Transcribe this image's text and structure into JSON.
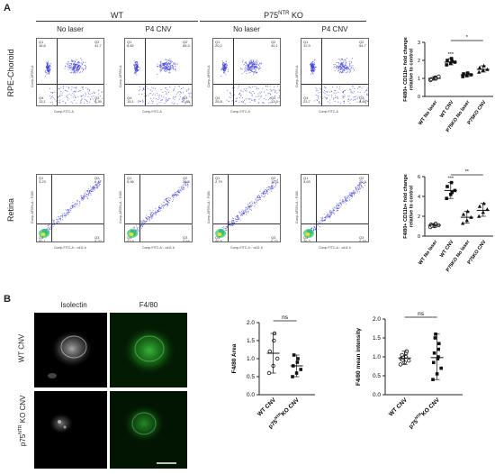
{
  "panelA": {
    "letter": "A",
    "group_wt": "WT",
    "group_ko": "P75NTR KO",
    "col_no_laser": "No laser",
    "col_p4cnv": "P4 CNV",
    "row_rpe": "RPE-Choroid",
    "row_retina": "Retina",
    "facs_rpe": [
      {
        "q1": "Q1",
        "q1v": "16,8",
        "q2": "Q2",
        "q2v": "41,7",
        "q3": "Q3",
        "q3v": "4,39",
        "q4": "Q4",
        "q4v": "13,1",
        "xlabel": "Comp-FITC-A",
        "ylabel": "Comp-AF594-A"
      },
      {
        "q1": "Q1",
        "q1v": "8,82",
        "q2": "Q2",
        "q2v": "68,3",
        "q3": "Q3",
        "q3v": "7,88",
        "q4": "Q4",
        "q4v": "15,1",
        "xlabel": "Comp-FITC-A",
        "ylabel": "Comp-AF594-A"
      },
      {
        "q1": "Q1",
        "q1v": "20,2",
        "q2": "Q2",
        "q2v": "40,1",
        "q3": "Q3",
        "q3v": "13,5",
        "q4": "Q4",
        "q4v": "25,8",
        "xlabel": "Comp-FITC-A",
        "ylabel": "Comp-AF594-A"
      },
      {
        "q1": "Q1",
        "q1v": "12,9",
        "q2": "Q2",
        "q2v": "54,7",
        "q3": "Q3",
        "q3v": "8,84",
        "q4": "Q4",
        "q4v": "23,7",
        "xlabel": "Comp-FITC-A",
        "ylabel": "Comp-AF594-A"
      }
    ],
    "facs_retina": [
      {
        "q1": "Q1",
        "q1v": "3,23",
        "q2": "Q2",
        "q2v": "6,47",
        "q3": "Q3",
        "q3v": "0,22",
        "q4": "Q4",
        "q4v": "90,1",
        "xlabel": "Comp-FITC-A :: cd11 b",
        "ylabel": "Comp-AF594-A :: F480"
      },
      {
        "q1": "Q1",
        "q1v": "5,96",
        "q2": "Q2",
        "q2v": "39,5",
        "q3": "Q3",
        "q3v": "0,64",
        "q4": "Q4",
        "q4v": "83,9",
        "xlabel": "Comp-FITC-A :: cd11 b",
        "ylabel": "Comp-AF594-A :: F480"
      },
      {
        "q1": "Q1",
        "q1v": "2,79",
        "q2": "Q2",
        "q2v": "10,3",
        "q3": "Q3",
        "q3v": "0,22",
        "q4": "Q4",
        "q4v": "86,9",
        "xlabel": "Comp-FITC-A :: cd11 b",
        "ylabel": "Comp-AF594-A :: F480"
      },
      {
        "q1": "Q1",
        "q1v": "3,63",
        "q2": "Q2",
        "q2v": "20,3",
        "q3": "Q3",
        "q3v": "0,45",
        "q4": "Q4",
        "q4v": "76,3",
        "xlabel": "Comp-FITC-A :: cd11 b",
        "ylabel": "Comp-AF594-A :: F480"
      }
    ]
  },
  "panelB": {
    "letter": "B",
    "col_isolectin": "Isolectin",
    "col_f480": "F4/80",
    "row_wt": "WT CNV",
    "row_ko": "p75NTR KO CNV"
  },
  "chart_data": [
    {
      "type": "scatter",
      "ylabel": "F4/80+ CD11b+ fold change relative to control",
      "categories": [
        "WT No laser",
        "WT CNV",
        "P75KO No laser",
        "P75KO CNV"
      ],
      "ylim": [
        0,
        3
      ],
      "yticks": [
        0,
        1,
        2,
        3
      ],
      "means": [
        1.0,
        1.9,
        1.2,
        1.5
      ],
      "points": [
        [
          0.9,
          1.0,
          1.1,
          0.95,
          1.05,
          1.0
        ],
        [
          1.75,
          1.85,
          1.9,
          2.0,
          2.1,
          1.95
        ],
        [
          1.1,
          1.15,
          1.2,
          1.25,
          1.3
        ],
        [
          1.35,
          1.45,
          1.5,
          1.6,
          1.7
        ]
      ],
      "markers": [
        "circle",
        "square",
        "square",
        "triangle"
      ],
      "annotations": [
        {
          "from": 1,
          "to": 3,
          "label": "*"
        },
        {
          "at": 1,
          "label": "***"
        }
      ]
    },
    {
      "type": "scatter",
      "ylabel": "F4/80+ CD11b+ fold change relative to control",
      "categories": [
        "WT No laser",
        "WT CNV",
        "P75KO No laser",
        "P75KO CNV"
      ],
      "ylim": [
        0,
        6
      ],
      "yticks": [
        0,
        2,
        4,
        6
      ],
      "means": [
        1.1,
        4.6,
        1.9,
        2.6
      ],
      "points": [
        [
          0.9,
          1.0,
          1.1,
          1.15,
          1.2,
          1.25,
          1.05
        ],
        [
          3.8,
          4.2,
          4.6,
          5.0,
          5.4,
          4.4
        ],
        [
          1.3,
          1.6,
          1.9,
          2.2,
          2.5
        ],
        [
          2.0,
          2.4,
          2.7,
          3.0,
          3.3
        ]
      ],
      "markers": [
        "circle",
        "square",
        "triangle",
        "triangle"
      ],
      "annotations": [
        {
          "from": 1,
          "to": 3,
          "label": "**"
        },
        {
          "at": 1,
          "label": "***"
        }
      ]
    },
    {
      "type": "scatter",
      "ylabel": "F4/80 Area",
      "categories": [
        "WT CNV",
        "p75NTR KO CNV"
      ],
      "ylim": [
        0.0,
        2.0
      ],
      "yticks": [
        0.0,
        0.5,
        1.0,
        1.5,
        2.0
      ],
      "means": [
        1.15,
        0.8
      ],
      "points": [
        [
          0.6,
          0.8,
          1.0,
          1.2,
          1.5,
          1.7
        ],
        [
          0.5,
          0.6,
          0.7,
          0.8,
          0.9,
          1.0,
          1.1
        ]
      ],
      "markers": [
        "circle",
        "square"
      ],
      "annotations": [
        {
          "from": 0,
          "to": 1,
          "label": "ns"
        }
      ]
    },
    {
      "type": "scatter",
      "ylabel": "F4/80 mean intensity",
      "categories": [
        "WT CNV",
        "p75NTR KO CNV"
      ],
      "ylim": [
        0.0,
        2.0
      ],
      "yticks": [
        0.0,
        0.5,
        1.0,
        1.5,
        2.0
      ],
      "means": [
        0.97,
        0.98
      ],
      "points": [
        [
          0.8,
          0.85,
          0.9,
          0.95,
          1.0,
          1.0,
          1.05,
          1.1,
          1.15,
          0.92,
          0.98
        ],
        [
          0.4,
          0.55,
          0.7,
          0.85,
          0.95,
          1.0,
          1.1,
          1.2,
          1.35,
          1.5,
          1.6
        ]
      ],
      "markers": [
        "circle",
        "square"
      ],
      "annotations": [
        {
          "from": 0,
          "to": 1,
          "label": "ns"
        }
      ]
    }
  ]
}
